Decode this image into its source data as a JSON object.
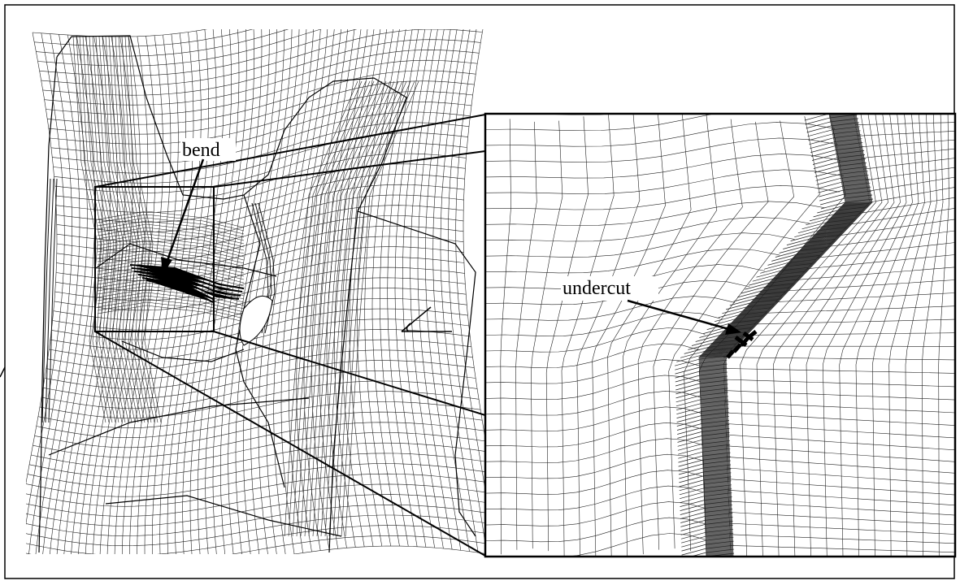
{
  "figure": {
    "labels": {
      "bend": "bend",
      "undercut": "undercut"
    },
    "colors": {
      "mesh_line": "#222222",
      "annotation": "#000000",
      "background": "#ffffff"
    },
    "icons": {
      "view_direction": "view-angle-icon"
    }
  }
}
